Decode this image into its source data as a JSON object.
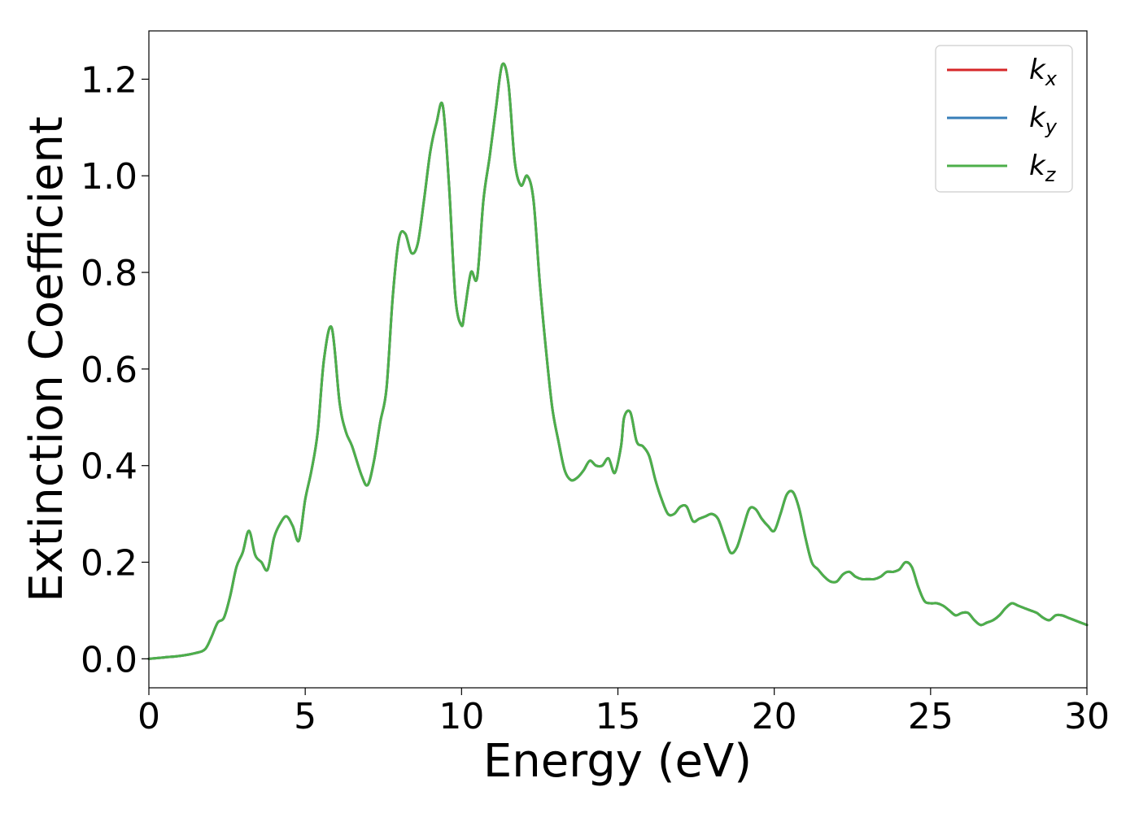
{
  "chart_data": {
    "type": "line",
    "title": "",
    "xlabel": "Energy (eV)",
    "ylabel": "Extinction Coefficient",
    "xlim": [
      0,
      30
    ],
    "ylim": [
      -0.06,
      1.3
    ],
    "xticks": [
      0,
      5,
      10,
      15,
      20,
      25,
      30
    ],
    "xtick_labels": [
      "0",
      "5",
      "10",
      "15",
      "20",
      "25",
      "30"
    ],
    "yticks": [
      0.0,
      0.2,
      0.4,
      0.6,
      0.8,
      1.0,
      1.2
    ],
    "ytick_labels": [
      "0.0",
      "0.2",
      "0.4",
      "0.6",
      "0.8",
      "1.0",
      "1.2"
    ],
    "grid": false,
    "legend_position": "top-right",
    "x": [
      0,
      0.5,
      1.0,
      1.5,
      1.8,
      2.0,
      2.2,
      2.4,
      2.6,
      2.8,
      3.0,
      3.2,
      3.4,
      3.6,
      3.8,
      4.0,
      4.2,
      4.4,
      4.6,
      4.8,
      5.0,
      5.2,
      5.4,
      5.6,
      5.85,
      6.1,
      6.3,
      6.5,
      6.8,
      7.0,
      7.2,
      7.4,
      7.6,
      7.8,
      8.0,
      8.2,
      8.4,
      8.6,
      8.8,
      9.0,
      9.2,
      9.4,
      9.6,
      9.8,
      10.0,
      10.1,
      10.3,
      10.5,
      10.7,
      10.9,
      11.1,
      11.3,
      11.5,
      11.7,
      11.9,
      12.1,
      12.3,
      12.5,
      12.7,
      12.9,
      13.1,
      13.3,
      13.5,
      13.7,
      13.9,
      14.1,
      14.3,
      14.5,
      14.7,
      14.9,
      15.1,
      15.2,
      15.4,
      15.6,
      15.8,
      16.0,
      16.2,
      16.4,
      16.6,
      16.8,
      17.0,
      17.2,
      17.4,
      17.6,
      17.8,
      18.0,
      18.2,
      18.4,
      18.6,
      18.8,
      19.0,
      19.2,
      19.4,
      19.6,
      19.8,
      20.0,
      20.2,
      20.4,
      20.6,
      20.8,
      21.0,
      21.2,
      21.4,
      21.6,
      21.8,
      22.0,
      22.2,
      22.4,
      22.6,
      22.8,
      23.0,
      23.2,
      23.4,
      23.6,
      23.8,
      24.0,
      24.2,
      24.4,
      24.6,
      24.8,
      25.0,
      25.2,
      25.4,
      25.6,
      25.8,
      26.0,
      26.2,
      26.4,
      26.6,
      26.8,
      27.0,
      27.2,
      27.4,
      27.6,
      27.8,
      28.0,
      28.2,
      28.4,
      28.6,
      28.8,
      29.0,
      29.2,
      29.4,
      29.6,
      29.8,
      30.0
    ],
    "series": [
      {
        "name": "x",
        "color": "#d62728",
        "values": [
          0.0,
          0.003,
          0.006,
          0.012,
          0.02,
          0.045,
          0.075,
          0.085,
          0.13,
          0.19,
          0.22,
          0.265,
          0.215,
          0.2,
          0.185,
          0.25,
          0.28,
          0.295,
          0.275,
          0.245,
          0.33,
          0.39,
          0.47,
          0.62,
          0.685,
          0.53,
          0.47,
          0.44,
          0.38,
          0.36,
          0.41,
          0.49,
          0.56,
          0.75,
          0.87,
          0.88,
          0.84,
          0.86,
          0.95,
          1.05,
          1.11,
          1.145,
          0.98,
          0.75,
          0.69,
          0.72,
          0.8,
          0.79,
          0.95,
          1.04,
          1.14,
          1.23,
          1.19,
          1.03,
          0.98,
          1.0,
          0.95,
          0.78,
          0.64,
          0.52,
          0.45,
          0.39,
          0.37,
          0.375,
          0.39,
          0.41,
          0.4,
          0.4,
          0.415,
          0.385,
          0.44,
          0.5,
          0.51,
          0.45,
          0.44,
          0.42,
          0.37,
          0.33,
          0.3,
          0.3,
          0.315,
          0.315,
          0.285,
          0.29,
          0.295,
          0.3,
          0.29,
          0.255,
          0.22,
          0.23,
          0.27,
          0.31,
          0.31,
          0.29,
          0.275,
          0.265,
          0.3,
          0.34,
          0.345,
          0.31,
          0.25,
          0.2,
          0.185,
          0.17,
          0.16,
          0.16,
          0.175,
          0.18,
          0.17,
          0.165,
          0.165,
          0.165,
          0.17,
          0.18,
          0.18,
          0.185,
          0.2,
          0.19,
          0.15,
          0.12,
          0.115,
          0.115,
          0.11,
          0.1,
          0.09,
          0.095,
          0.095,
          0.08,
          0.07,
          0.075,
          0.08,
          0.09,
          0.105,
          0.115,
          0.11,
          0.105,
          0.1,
          0.095,
          0.085,
          0.08,
          0.09,
          0.09,
          0.085,
          0.08,
          0.075,
          0.07
        ]
      },
      {
        "name": "y",
        "color": "#377eb8",
        "values": [
          0.0,
          0.003,
          0.006,
          0.012,
          0.02,
          0.045,
          0.075,
          0.085,
          0.13,
          0.19,
          0.22,
          0.265,
          0.215,
          0.2,
          0.185,
          0.25,
          0.28,
          0.295,
          0.275,
          0.245,
          0.33,
          0.39,
          0.47,
          0.62,
          0.685,
          0.53,
          0.47,
          0.44,
          0.38,
          0.36,
          0.41,
          0.49,
          0.56,
          0.75,
          0.87,
          0.88,
          0.84,
          0.86,
          0.95,
          1.05,
          1.11,
          1.145,
          0.98,
          0.75,
          0.69,
          0.72,
          0.8,
          0.79,
          0.95,
          1.04,
          1.14,
          1.23,
          1.19,
          1.03,
          0.98,
          1.0,
          0.95,
          0.78,
          0.64,
          0.52,
          0.45,
          0.39,
          0.37,
          0.375,
          0.39,
          0.41,
          0.4,
          0.4,
          0.415,
          0.385,
          0.44,
          0.5,
          0.51,
          0.45,
          0.44,
          0.42,
          0.37,
          0.33,
          0.3,
          0.3,
          0.315,
          0.315,
          0.285,
          0.29,
          0.295,
          0.3,
          0.29,
          0.255,
          0.22,
          0.23,
          0.27,
          0.31,
          0.31,
          0.29,
          0.275,
          0.265,
          0.3,
          0.34,
          0.345,
          0.31,
          0.25,
          0.2,
          0.185,
          0.17,
          0.16,
          0.16,
          0.175,
          0.18,
          0.17,
          0.165,
          0.165,
          0.165,
          0.17,
          0.18,
          0.18,
          0.185,
          0.2,
          0.19,
          0.15,
          0.12,
          0.115,
          0.115,
          0.11,
          0.1,
          0.09,
          0.095,
          0.095,
          0.08,
          0.07,
          0.075,
          0.08,
          0.09,
          0.105,
          0.115,
          0.11,
          0.105,
          0.1,
          0.095,
          0.085,
          0.08,
          0.09,
          0.09,
          0.085,
          0.08,
          0.075,
          0.07
        ]
      },
      {
        "name": "z",
        "color": "#4daf4a",
        "values": [
          0.0,
          0.003,
          0.006,
          0.012,
          0.02,
          0.045,
          0.075,
          0.085,
          0.13,
          0.19,
          0.22,
          0.265,
          0.215,
          0.2,
          0.185,
          0.25,
          0.28,
          0.295,
          0.275,
          0.245,
          0.33,
          0.39,
          0.47,
          0.62,
          0.685,
          0.53,
          0.47,
          0.44,
          0.38,
          0.36,
          0.41,
          0.49,
          0.56,
          0.75,
          0.87,
          0.88,
          0.84,
          0.86,
          0.95,
          1.05,
          1.11,
          1.145,
          0.98,
          0.75,
          0.69,
          0.72,
          0.8,
          0.79,
          0.95,
          1.04,
          1.14,
          1.23,
          1.19,
          1.03,
          0.98,
          1.0,
          0.95,
          0.78,
          0.64,
          0.52,
          0.45,
          0.39,
          0.37,
          0.375,
          0.39,
          0.41,
          0.4,
          0.4,
          0.415,
          0.385,
          0.44,
          0.5,
          0.51,
          0.45,
          0.44,
          0.42,
          0.37,
          0.33,
          0.3,
          0.3,
          0.315,
          0.315,
          0.285,
          0.29,
          0.295,
          0.3,
          0.29,
          0.255,
          0.22,
          0.23,
          0.27,
          0.31,
          0.31,
          0.29,
          0.275,
          0.265,
          0.3,
          0.34,
          0.345,
          0.31,
          0.25,
          0.2,
          0.185,
          0.17,
          0.16,
          0.16,
          0.175,
          0.18,
          0.17,
          0.165,
          0.165,
          0.165,
          0.17,
          0.18,
          0.18,
          0.185,
          0.2,
          0.19,
          0.15,
          0.12,
          0.115,
          0.115,
          0.11,
          0.1,
          0.09,
          0.095,
          0.095,
          0.08,
          0.07,
          0.075,
          0.08,
          0.09,
          0.105,
          0.115,
          0.11,
          0.105,
          0.1,
          0.095,
          0.085,
          0.08,
          0.09,
          0.09,
          0.085,
          0.08,
          0.075,
          0.07
        ]
      }
    ]
  },
  "legend": {
    "entries": [
      {
        "symbol": "k",
        "subscript": "x",
        "color": "#d62728"
      },
      {
        "symbol": "k",
        "subscript": "y",
        "color": "#377eb8"
      },
      {
        "symbol": "k",
        "subscript": "z",
        "color": "#4daf4a"
      }
    ]
  }
}
